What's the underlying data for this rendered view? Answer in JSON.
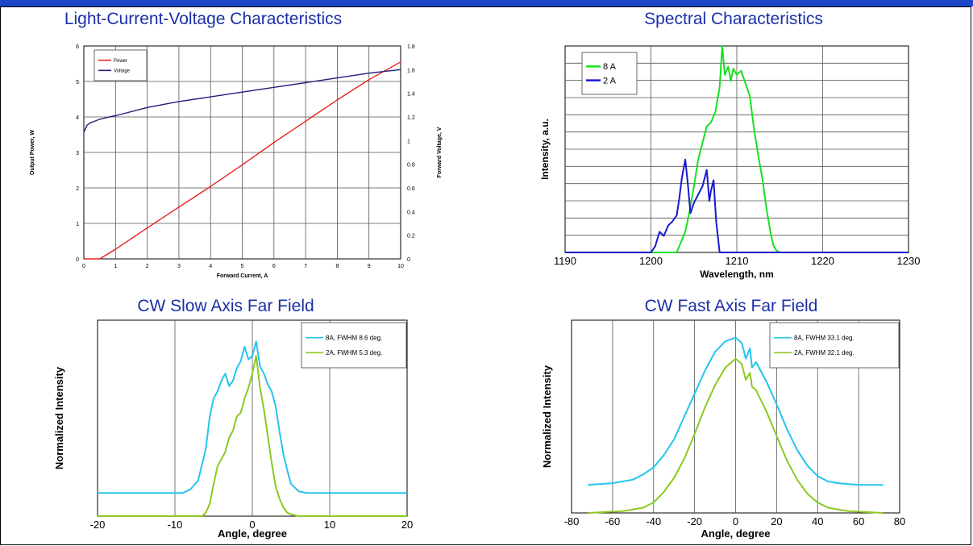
{
  "charts": [
    {
      "id": "liv",
      "type": "line",
      "title": "Light-Current-Voltage Characteristics",
      "xlabel": "Forward Current, A",
      "ylabel": "Output Power, W",
      "y2label": "Forward Voltage, V",
      "xlim": [
        0,
        10
      ],
      "ylim": [
        0,
        6
      ],
      "y2lim": [
        0,
        1.8
      ],
      "xticks": [
        "0",
        "1",
        "2",
        "3",
        "4",
        "5",
        "6",
        "7",
        "8",
        "9",
        "10"
      ],
      "yticks": [
        "0",
        "1",
        "2",
        "3",
        "4",
        "5",
        "6"
      ],
      "y2ticks": [
        "0",
        "0.2",
        "0.4",
        "0.6",
        "0.8",
        "1",
        "1.2",
        "1.4",
        "1.6",
        "1.8"
      ],
      "grid": true,
      "legend": "top-left",
      "series": [
        {
          "name": "Power",
          "color": "#e8201e",
          "axis": "y",
          "x": [
            0,
            0.5,
            1,
            2,
            3,
            4,
            5,
            6,
            7,
            8,
            9,
            9.5,
            10
          ],
          "y": [
            0,
            0,
            0.27,
            0.87,
            1.46,
            2.04,
            2.65,
            3.28,
            3.88,
            4.48,
            5.05,
            5.3,
            5.55
          ]
        },
        {
          "name": "Voltage",
          "color": "#1f1f7a",
          "axis": "y2",
          "x": [
            0,
            0.05,
            0.1,
            0.2,
            0.3,
            0.5,
            0.8,
            1,
            2,
            3,
            4,
            5,
            6,
            7,
            8,
            9,
            10
          ],
          "y": [
            1.07,
            1.1,
            1.13,
            1.15,
            1.16,
            1.18,
            1.2,
            1.21,
            1.28,
            1.33,
            1.37,
            1.41,
            1.45,
            1.49,
            1.53,
            1.57,
            1.6
          ]
        }
      ]
    },
    {
      "id": "spec",
      "type": "line",
      "title": "Spectral Characteristics",
      "xlabel": "Wavelength, nm",
      "ylabel": "Intensity, a.u.",
      "xlim": [
        1190,
        1230
      ],
      "ylim": [
        0,
        100
      ],
      "xticks": [
        "1190",
        "1200",
        "1210",
        "1220",
        "1230"
      ],
      "grid": true,
      "legend": "top-left",
      "series": [
        {
          "name": "8 A",
          "color": "#18e020",
          "x": [
            1190,
            1203,
            1204,
            1204.5,
            1205,
            1205.5,
            1206,
            1206.5,
            1207,
            1207.5,
            1208,
            1208.3,
            1208.6,
            1209,
            1209.3,
            1209.6,
            1210,
            1210.5,
            1211,
            1211.5,
            1212,
            1212.5,
            1213,
            1213.5,
            1214,
            1214.3,
            1214.6,
            1215,
            1230
          ],
          "y": [
            0,
            0,
            10,
            20,
            32,
            45,
            53,
            61,
            63,
            68,
            80,
            100,
            86,
            90,
            83,
            89,
            86,
            88,
            82,
            76,
            60,
            47,
            35,
            20,
            8,
            3,
            1,
            0,
            0
          ]
        },
        {
          "name": "2 A",
          "color": "#1818d0",
          "x": [
            1190,
            1200,
            1200.5,
            1201,
            1201.5,
            1202,
            1202.5,
            1203,
            1203.3,
            1203.6,
            1204,
            1204.3,
            1204.6,
            1205,
            1205.5,
            1206,
            1206.5,
            1206.8,
            1207,
            1207.3,
            1207.6,
            1208,
            1230
          ],
          "y": [
            0,
            0,
            3,
            10,
            8,
            13,
            15,
            18,
            26,
            36,
            45,
            33,
            19,
            24,
            28,
            32,
            40,
            25,
            30,
            35,
            15,
            0,
            0
          ]
        }
      ]
    },
    {
      "id": "slow",
      "type": "line",
      "title": "CW Slow Axis Far Field",
      "xlabel": "Angle, degree",
      "ylabel": "Normalized Intensity",
      "xlim": [
        -20,
        20
      ],
      "ylim": [
        0,
        1.1
      ],
      "xticks": [
        "-20",
        "-10",
        "0",
        "10",
        "20"
      ],
      "grid": true,
      "legend": "top-right",
      "series": [
        {
          "name": "8A, FWHM 8.6 deg.",
          "color": "#24c4ee",
          "x": [
            -20,
            -9,
            -8,
            -7,
            -6,
            -5.5,
            -5,
            -4.5,
            -4,
            -3.5,
            -3,
            -2.5,
            -2,
            -1.5,
            -1,
            -0.5,
            0,
            0.5,
            1,
            1.5,
            2,
            2.5,
            3,
            3.5,
            4,
            4.5,
            5,
            6,
            7,
            20
          ],
          "y": [
            0.13,
            0.13,
            0.15,
            0.2,
            0.38,
            0.56,
            0.66,
            0.7,
            0.76,
            0.8,
            0.73,
            0.76,
            0.83,
            0.87,
            0.95,
            0.88,
            0.9,
            0.98,
            0.84,
            0.8,
            0.74,
            0.7,
            0.62,
            0.48,
            0.35,
            0.26,
            0.18,
            0.14,
            0.13,
            0.13
          ]
        },
        {
          "name": "2A, FWHM 5.3 deg.",
          "color": "#8cc820",
          "x": [
            -20,
            -6.5,
            -6,
            -5.5,
            -5,
            -4.5,
            -4,
            -3.5,
            -3,
            -2.5,
            -2,
            -1.5,
            -1,
            -0.5,
            0,
            0.5,
            1,
            1.5,
            2,
            2.5,
            3,
            3.5,
            4,
            4.5,
            5,
            6,
            20
          ],
          "y": [
            0,
            0,
            0.02,
            0.07,
            0.18,
            0.28,
            0.32,
            0.36,
            0.44,
            0.48,
            0.56,
            0.58,
            0.66,
            0.72,
            0.8,
            0.9,
            0.72,
            0.6,
            0.45,
            0.3,
            0.17,
            0.1,
            0.05,
            0.02,
            0.01,
            0,
            0
          ]
        }
      ]
    },
    {
      "id": "fast",
      "type": "line",
      "title": "CW Fast Axis Far Field",
      "xlabel": "Angle, degree",
      "ylabel": "Normalized Intensity",
      "xlim": [
        -80,
        80
      ],
      "ylim": [
        0,
        1.1
      ],
      "xticks": [
        "-80",
        "-60",
        "-40",
        "-20",
        "0",
        "20",
        "40",
        "60",
        "80"
      ],
      "grid": true,
      "legend": "top-right",
      "series": [
        {
          "name": "8A, FWHM 33.1 deg.",
          "color": "#24c4ee",
          "x": [
            -72,
            -60,
            -50,
            -45,
            -40,
            -35,
            -30,
            -25,
            -20,
            -15,
            -10,
            -5,
            0,
            3,
            5,
            7,
            8,
            10,
            15,
            20,
            25,
            30,
            35,
            40,
            45,
            50,
            60,
            72
          ],
          "y": [
            0.16,
            0.17,
            0.19,
            0.22,
            0.26,
            0.33,
            0.42,
            0.55,
            0.68,
            0.81,
            0.92,
            0.98,
            1.0,
            0.97,
            0.88,
            0.94,
            0.83,
            0.86,
            0.75,
            0.62,
            0.48,
            0.36,
            0.27,
            0.21,
            0.18,
            0.17,
            0.16,
            0.16
          ]
        },
        {
          "name": "2A, FWHM 32.1 deg.",
          "color": "#8cc820",
          "x": [
            -72,
            -55,
            -45,
            -40,
            -35,
            -30,
            -25,
            -20,
            -15,
            -10,
            -5,
            0,
            3,
            5,
            7,
            8,
            10,
            15,
            20,
            25,
            30,
            35,
            40,
            45,
            55,
            72
          ],
          "y": [
            0,
            0.01,
            0.03,
            0.06,
            0.12,
            0.2,
            0.31,
            0.45,
            0.6,
            0.73,
            0.83,
            0.88,
            0.85,
            0.76,
            0.8,
            0.72,
            0.7,
            0.58,
            0.44,
            0.3,
            0.19,
            0.11,
            0.06,
            0.03,
            0.01,
            0
          ]
        }
      ]
    }
  ]
}
